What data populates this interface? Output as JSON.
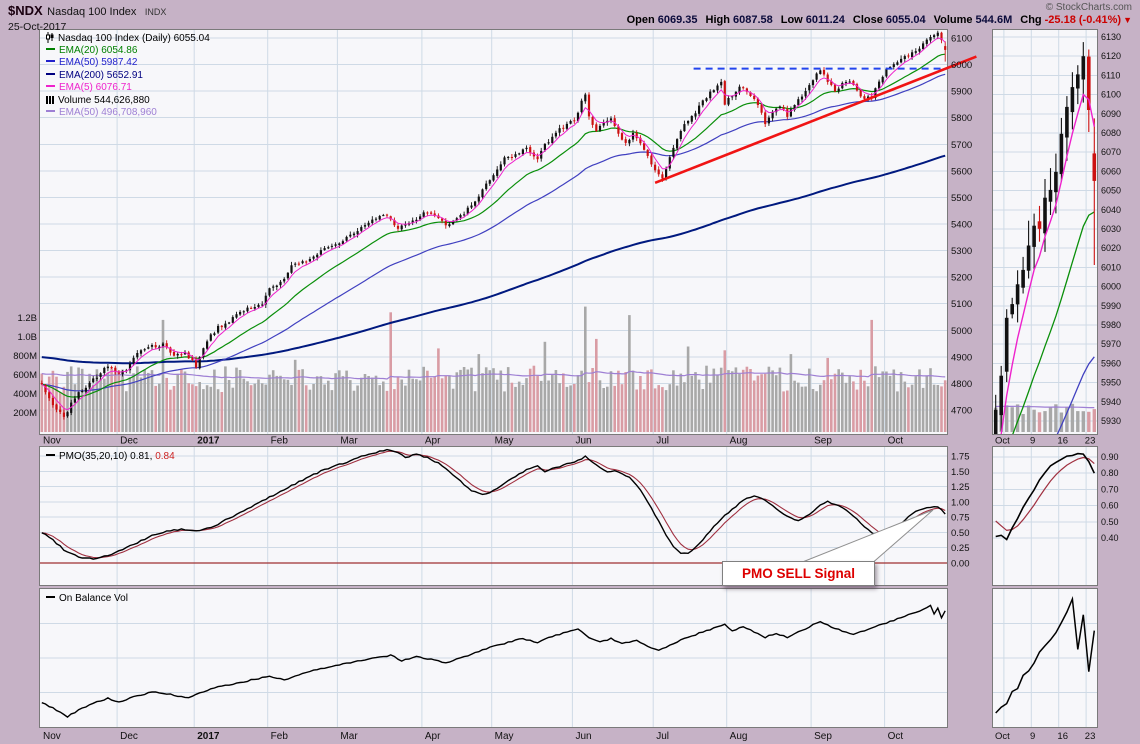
{
  "header": {
    "symbol": "$NDX",
    "name": "Nasdaq 100 Index",
    "exchange": "INDX",
    "date": "25-Oct-2017",
    "copyright": "© StockCharts.com",
    "quote": [
      {
        "label": "Open",
        "value": "6069.35"
      },
      {
        "label": "High",
        "value": "6087.58"
      },
      {
        "label": "Low",
        "value": "6011.24"
      },
      {
        "label": "Close",
        "value": "6055.04"
      },
      {
        "label": "Volume",
        "value": "544.6M"
      },
      {
        "label": "Chg",
        "value": "-25.18 (-0.41%)",
        "red": true
      }
    ],
    "chg_arrow": "▼"
  },
  "legend_main": {
    "title": "Nasdaq 100 Index (Daily) 6055.04",
    "items": [
      {
        "label": "EMA(20) 6054.86",
        "color": "#008000",
        "icon": "line"
      },
      {
        "label": "EMA(50) 5987.42",
        "color": "#2222cc",
        "icon": "line"
      },
      {
        "label": "EMA(200) 5652.91",
        "color": "#000080",
        "icon": "line"
      },
      {
        "label": "EMA(5) 6076.71",
        "color": "#ee22cc",
        "icon": "line"
      },
      {
        "label": "Volume 544,626,880",
        "color": "#000000",
        "icon": "bars"
      },
      {
        "label": "EMA(50) 496,708,960",
        "color": "#9e7fd4",
        "icon": "line"
      }
    ]
  },
  "legend_pmo": {
    "name": "PMO(35,20,10)",
    "v1": "0.81,",
    "v2": "0.84"
  },
  "legend_obv": {
    "title": "On Balance Vol"
  },
  "annotations": {
    "sell_label": "PMO SELL Signal"
  },
  "theme": {
    "page_bg": "#c6b2c6",
    "plot_bg": "#f7f7fa",
    "grid": "#cfdae6",
    "border": "#7a7a7a",
    "candle_up": "#111111",
    "candle_down": "#cc1111",
    "vol_up": "#a8a8a8",
    "vol_down": "#d99ca4",
    "ema5": "#ee22cc",
    "ema20": "#0a8f0a",
    "ema50": "#4040c0",
    "ema200": "#00197f",
    "vol_ema": "#9e7fd4",
    "pmo_line": "#000000",
    "pmo_signal": "#a03040",
    "zero_line": "#a03030",
    "axis_text": "#111111"
  },
  "chart_data": [
    {
      "type": "candlestick+volume",
      "title": "Nasdaq 100 Index (Daily)",
      "total_days": 247,
      "months": [
        {
          "label": "Nov",
          "day": 0
        },
        {
          "label": "Dec",
          "day": 21
        },
        {
          "label": "2017",
          "day": 42
        },
        {
          "label": "Feb",
          "day": 62
        },
        {
          "label": "Mar",
          "day": 81
        },
        {
          "label": "Apr",
          "day": 104
        },
        {
          "label": "May",
          "day": 123
        },
        {
          "label": "Jun",
          "day": 145
        },
        {
          "label": "Jul",
          "day": 167
        },
        {
          "label": "Aug",
          "day": 187
        },
        {
          "label": "Sep",
          "day": 210
        },
        {
          "label": "Oct",
          "day": 230
        }
      ],
      "y_ticks": [
        6100,
        6000,
        5900,
        5800,
        5700,
        5600,
        5500,
        5400,
        5300,
        5200,
        5100,
        5000,
        4900,
        4800,
        4700
      ],
      "ylim": [
        4600,
        6135
      ],
      "vol_ticks": [
        {
          "label": "1.2B",
          "v": 1200
        },
        {
          "label": "1.0B",
          "v": 1000
        },
        {
          "label": "800M",
          "v": 800
        },
        {
          "label": "600M",
          "v": 600
        },
        {
          "label": "400M",
          "v": 400
        },
        {
          "label": "200M",
          "v": 200
        }
      ],
      "close_anchors": [
        [
          0,
          4800
        ],
        [
          3,
          4722
        ],
        [
          6,
          4672
        ],
        [
          9,
          4748
        ],
        [
          13,
          4800
        ],
        [
          18,
          4868
        ],
        [
          21,
          4840
        ],
        [
          23,
          4855
        ],
        [
          26,
          4920
        ],
        [
          30,
          4940
        ],
        [
          33,
          4945
        ],
        [
          36,
          4905
        ],
        [
          39,
          4920
        ],
        [
          42,
          4863
        ],
        [
          45,
          4962
        ],
        [
          48,
          5010
        ],
        [
          52,
          5045
        ],
        [
          56,
          5080
        ],
        [
          60,
          5100
        ],
        [
          62,
          5160
        ],
        [
          65,
          5180
        ],
        [
          68,
          5240
        ],
        [
          72,
          5260
        ],
        [
          75,
          5290
        ],
        [
          78,
          5310
        ],
        [
          81,
          5320
        ],
        [
          84,
          5360
        ],
        [
          88,
          5400
        ],
        [
          92,
          5435
        ],
        [
          95,
          5420
        ],
        [
          97,
          5380
        ],
        [
          100,
          5405
        ],
        [
          104,
          5440
        ],
        [
          107,
          5430
        ],
        [
          110,
          5395
        ],
        [
          113,
          5415
        ],
        [
          116,
          5455
        ],
        [
          119,
          5505
        ],
        [
          121,
          5555
        ],
        [
          123,
          5580
        ],
        [
          126,
          5645
        ],
        [
          129,
          5660
        ],
        [
          132,
          5685
        ],
        [
          135,
          5645
        ],
        [
          137,
          5695
        ],
        [
          140,
          5745
        ],
        [
          143,
          5775
        ],
        [
          145,
          5788
        ],
        [
          147,
          5860
        ],
        [
          148,
          5885
        ],
        [
          149,
          5800
        ],
        [
          151,
          5745
        ],
        [
          153,
          5780
        ],
        [
          155,
          5800
        ],
        [
          157,
          5745
        ],
        [
          159,
          5700
        ],
        [
          161,
          5740
        ],
        [
          163,
          5705
        ],
        [
          165,
          5655
        ],
        [
          167,
          5600
        ],
        [
          169,
          5575
        ],
        [
          171,
          5655
        ],
        [
          173,
          5715
        ],
        [
          175,
          5775
        ],
        [
          177,
          5800
        ],
        [
          179,
          5840
        ],
        [
          181,
          5880
        ],
        [
          183,
          5910
        ],
        [
          185,
          5932
        ],
        [
          186,
          5855
        ],
        [
          188,
          5880
        ],
        [
          190,
          5915
        ],
        [
          192,
          5900
        ],
        [
          194,
          5875
        ],
        [
          196,
          5820
        ],
        [
          197,
          5775
        ],
        [
          199,
          5820
        ],
        [
          201,
          5845
        ],
        [
          203,
          5808
        ],
        [
          205,
          5850
        ],
        [
          207,
          5880
        ],
        [
          209,
          5928
        ],
        [
          211,
          5965
        ],
        [
          212,
          5980
        ],
        [
          214,
          5938
        ],
        [
          216,
          5905
        ],
        [
          218,
          5928
        ],
        [
          220,
          5940
        ],
        [
          222,
          5905
        ],
        [
          224,
          5868
        ],
        [
          226,
          5880
        ],
        [
          228,
          5938
        ],
        [
          230,
          5978
        ],
        [
          232,
          6005
        ],
        [
          234,
          6022
        ],
        [
          236,
          6035
        ],
        [
          238,
          6048
        ],
        [
          240,
          6080
        ],
        [
          242,
          6098
        ],
        [
          244,
          6120
        ],
        [
          245,
          6092
        ],
        [
          246,
          6055.04
        ]
      ],
      "volume_base_M": 420,
      "volume_spikes_M": [
        [
          33,
          1180
        ],
        [
          69,
          760
        ],
        [
          95,
          1260
        ],
        [
          108,
          880
        ],
        [
          119,
          820
        ],
        [
          137,
          950
        ],
        [
          148,
          1320
        ],
        [
          151,
          980
        ],
        [
          160,
          1230
        ],
        [
          176,
          900
        ],
        [
          186,
          860
        ],
        [
          204,
          820
        ],
        [
          214,
          780
        ],
        [
          226,
          1180
        ]
      ],
      "ema_periods": [
        5,
        20,
        50,
        200
      ],
      "annotations": {
        "resistance": {
          "price": 5985,
          "from_day": 178,
          "style": "dashed",
          "color": "#2244ee"
        },
        "trendline": {
          "from": [
            167,
            5555
          ],
          "to": [
            255,
            6030
          ],
          "color": "#f01414"
        }
      },
      "last": {
        "open": 6069.35,
        "high": 6087.58,
        "low": 6011.24,
        "close": 6055.04,
        "volume_M": 544.6,
        "chg": "-25.18 (-0.41%)"
      }
    },
    {
      "type": "line",
      "name": "PMO(35,20,10)",
      "y_ticks": [
        1.75,
        1.5,
        1.25,
        1.0,
        0.75,
        0.5,
        0.25,
        0.0
      ],
      "last_pmo": 0.81,
      "last_signal": 0.84,
      "signal_period": 10,
      "pmo_anchors": [
        [
          0,
          0.5
        ],
        [
          3,
          0.38
        ],
        [
          6,
          0.22
        ],
        [
          10,
          0.1
        ],
        [
          14,
          0.07
        ],
        [
          18,
          0.12
        ],
        [
          22,
          0.22
        ],
        [
          26,
          0.33
        ],
        [
          30,
          0.45
        ],
        [
          34,
          0.52
        ],
        [
          38,
          0.55
        ],
        [
          42,
          0.52
        ],
        [
          46,
          0.58
        ],
        [
          50,
          0.7
        ],
        [
          54,
          0.82
        ],
        [
          58,
          0.95
        ],
        [
          62,
          1.08
        ],
        [
          66,
          1.2
        ],
        [
          70,
          1.33
        ],
        [
          74,
          1.45
        ],
        [
          78,
          1.55
        ],
        [
          82,
          1.63
        ],
        [
          86,
          1.72
        ],
        [
          90,
          1.8
        ],
        [
          94,
          1.85
        ],
        [
          97,
          1.8
        ],
        [
          99,
          1.73
        ],
        [
          102,
          1.78
        ],
        [
          105,
          1.72
        ],
        [
          108,
          1.64
        ],
        [
          111,
          1.5
        ],
        [
          114,
          1.34
        ],
        [
          117,
          1.18
        ],
        [
          120,
          1.12
        ],
        [
          123,
          1.18
        ],
        [
          126,
          1.3
        ],
        [
          129,
          1.42
        ],
        [
          132,
          1.52
        ],
        [
          135,
          1.58
        ],
        [
          137,
          1.5
        ],
        [
          140,
          1.56
        ],
        [
          143,
          1.62
        ],
        [
          146,
          1.68
        ],
        [
          148,
          1.74
        ],
        [
          150,
          1.65
        ],
        [
          152,
          1.55
        ],
        [
          154,
          1.48
        ],
        [
          156,
          1.52
        ],
        [
          158,
          1.47
        ],
        [
          160,
          1.4
        ],
        [
          162,
          1.28
        ],
        [
          164,
          1.1
        ],
        [
          166,
          0.9
        ],
        [
          168,
          0.68
        ],
        [
          170,
          0.46
        ],
        [
          172,
          0.28
        ],
        [
          174,
          0.17
        ],
        [
          176,
          0.15
        ],
        [
          178,
          0.25
        ],
        [
          180,
          0.38
        ],
        [
          182,
          0.52
        ],
        [
          184,
          0.66
        ],
        [
          186,
          0.78
        ],
        [
          188,
          0.88
        ],
        [
          190,
          0.98
        ],
        [
          192,
          1.06
        ],
        [
          194,
          1.1
        ],
        [
          196,
          1.06
        ],
        [
          198,
          0.98
        ],
        [
          200,
          0.88
        ],
        [
          202,
          0.8
        ],
        [
          204,
          0.73
        ],
        [
          206,
          0.7
        ],
        [
          208,
          0.75
        ],
        [
          210,
          0.84
        ],
        [
          212,
          0.94
        ],
        [
          214,
          1.0
        ],
        [
          216,
          0.97
        ],
        [
          218,
          0.9
        ],
        [
          220,
          0.82
        ],
        [
          222,
          0.72
        ],
        [
          224,
          0.6
        ],
        [
          226,
          0.5
        ],
        [
          228,
          0.42
        ],
        [
          230,
          0.4
        ],
        [
          232,
          0.52
        ],
        [
          234,
          0.65
        ],
        [
          236,
          0.76
        ],
        [
          238,
          0.84
        ],
        [
          240,
          0.89
        ],
        [
          242,
          0.92
        ],
        [
          244,
          0.92
        ],
        [
          245,
          0.88
        ],
        [
          246,
          0.8
        ]
      ]
    },
    {
      "type": "line",
      "name": "On Balance Vol",
      "units": "relative",
      "obv_anchors": [
        [
          0,
          0.16
        ],
        [
          4,
          0.1
        ],
        [
          7,
          0.05
        ],
        [
          10,
          0.1
        ],
        [
          14,
          0.15
        ],
        [
          18,
          0.19
        ],
        [
          21,
          0.16
        ],
        [
          25,
          0.2
        ],
        [
          30,
          0.24
        ],
        [
          35,
          0.22
        ],
        [
          40,
          0.19
        ],
        [
          43,
          0.23
        ],
        [
          47,
          0.27
        ],
        [
          52,
          0.3
        ],
        [
          57,
          0.33
        ],
        [
          62,
          0.36
        ],
        [
          66,
          0.33
        ],
        [
          70,
          0.37
        ],
        [
          75,
          0.41
        ],
        [
          80,
          0.44
        ],
        [
          85,
          0.47
        ],
        [
          90,
          0.5
        ],
        [
          95,
          0.52
        ],
        [
          98,
          0.48
        ],
        [
          102,
          0.51
        ],
        [
          106,
          0.49
        ],
        [
          110,
          0.46
        ],
        [
          114,
          0.5
        ],
        [
          118,
          0.54
        ],
        [
          122,
          0.58
        ],
        [
          127,
          0.62
        ],
        [
          131,
          0.65
        ],
        [
          135,
          0.62
        ],
        [
          138,
          0.66
        ],
        [
          142,
          0.69
        ],
        [
          146,
          0.72
        ],
        [
          149,
          0.66
        ],
        [
          152,
          0.62
        ],
        [
          155,
          0.65
        ],
        [
          158,
          0.61
        ],
        [
          162,
          0.64
        ],
        [
          165,
          0.59
        ],
        [
          168,
          0.56
        ],
        [
          171,
          0.6
        ],
        [
          175,
          0.65
        ],
        [
          179,
          0.69
        ],
        [
          183,
          0.73
        ],
        [
          186,
          0.76
        ],
        [
          188,
          0.71
        ],
        [
          191,
          0.74
        ],
        [
          194,
          0.7
        ],
        [
          197,
          0.66
        ],
        [
          200,
          0.69
        ],
        [
          203,
          0.66
        ],
        [
          206,
          0.7
        ],
        [
          209,
          0.74
        ],
        [
          212,
          0.78
        ],
        [
          215,
          0.74
        ],
        [
          218,
          0.71
        ],
        [
          221,
          0.68
        ],
        [
          224,
          0.71
        ],
        [
          227,
          0.74
        ],
        [
          230,
          0.77
        ],
        [
          233,
          0.8
        ],
        [
          236,
          0.83
        ],
        [
          239,
          0.86
        ],
        [
          242,
          0.9
        ],
        [
          243,
          0.84
        ],
        [
          244,
          0.88
        ],
        [
          245,
          0.81
        ],
        [
          246,
          0.86
        ]
      ]
    },
    {
      "type": "mini-zoom",
      "slice_from_day": 228,
      "price_ticks": [
        6130,
        6120,
        6110,
        6100,
        6090,
        6080,
        6070,
        6060,
        6050,
        6040,
        6030,
        6020,
        6010,
        6000,
        5990,
        5980,
        5970,
        5960,
        5950,
        5940,
        5930
      ],
      "pmo_ticks": [
        0.9,
        0.8,
        0.7,
        0.6,
        0.5,
        0.4
      ],
      "x_labels": [
        {
          "label": "Oct",
          "day": 230
        },
        {
          "label": "9",
          "day": 235
        },
        {
          "label": "16",
          "day": 240
        },
        {
          "label": "23",
          "day": 245
        }
      ]
    }
  ]
}
